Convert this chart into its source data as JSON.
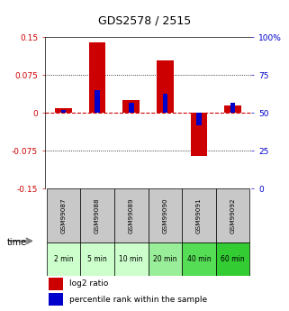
{
  "title": "GDS2578 / 2515",
  "samples": [
    "GSM99087",
    "GSM99088",
    "GSM99089",
    "GSM99090",
    "GSM99091",
    "GSM99092"
  ],
  "time_labels": [
    "2 min",
    "5 min",
    "10 min",
    "20 min",
    "40 min",
    "60 min"
  ],
  "log2_ratio": [
    0.01,
    0.14,
    0.025,
    0.105,
    -0.085,
    0.015
  ],
  "percentile_rank": [
    52,
    65,
    57,
    63,
    42,
    57
  ],
  "bar_width": 0.5,
  "blue_bar_width": 0.15,
  "ylim": [
    -0.15,
    0.15
  ],
  "yticks_left": [
    -0.15,
    -0.075,
    0,
    0.075,
    0.15
  ],
  "yticks_right_vals": [
    0,
    25,
    50,
    75,
    100
  ],
  "yticks_right_labels": [
    "0",
    "25",
    "50",
    "75",
    "100%"
  ],
  "red_color": "#cc0000",
  "blue_color": "#0000cc",
  "zero_line_color": "#cc0000",
  "grid_color": "#000000",
  "label_bg_gray": "#c8c8c8",
  "green_colors": [
    "#ccffcc",
    "#ccffcc",
    "#ccffcc",
    "#99ee99",
    "#55dd55",
    "#33cc33"
  ],
  "legend_red": "log2 ratio",
  "legend_blue": "percentile rank within the sample",
  "time_label": "time"
}
